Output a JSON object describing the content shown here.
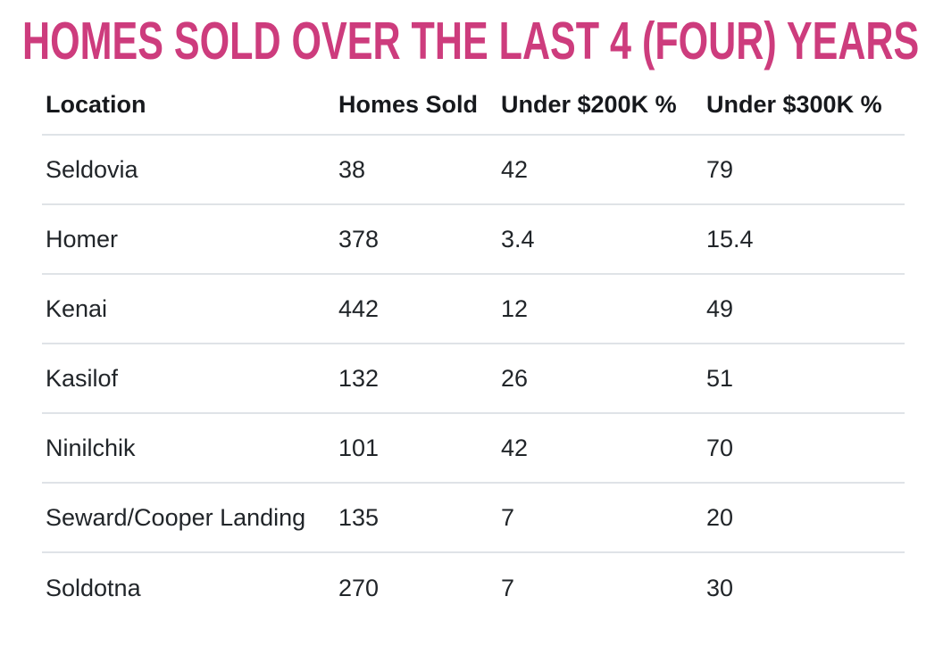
{
  "title": "HOMES SOLD OVER THE LAST 4 (FOUR) YEARS",
  "colors": {
    "accent_pink": "#cd3c7d",
    "divider_gray": "#dfe3e7",
    "header_text": "#17191d",
    "body_text": "#212529"
  },
  "chart_data": {
    "type": "table",
    "title": "HOMES SOLD OVER THE LAST 4 (FOUR) YEARS",
    "columns": [
      "Location",
      "Homes Sold",
      "Under $200K %",
      "Under $300K %"
    ],
    "rows": [
      [
        "Seldovia",
        38,
        42,
        79
      ],
      [
        "Homer",
        378,
        3.4,
        15.4
      ],
      [
        "Kenai",
        442,
        12,
        49
      ],
      [
        "Kasilof",
        132,
        26,
        51
      ],
      [
        "Ninilchik",
        101,
        42,
        70
      ],
      [
        "Seward/Cooper Landing",
        135,
        7,
        20
      ],
      [
        "Soldotna",
        270,
        7,
        30
      ]
    ]
  }
}
